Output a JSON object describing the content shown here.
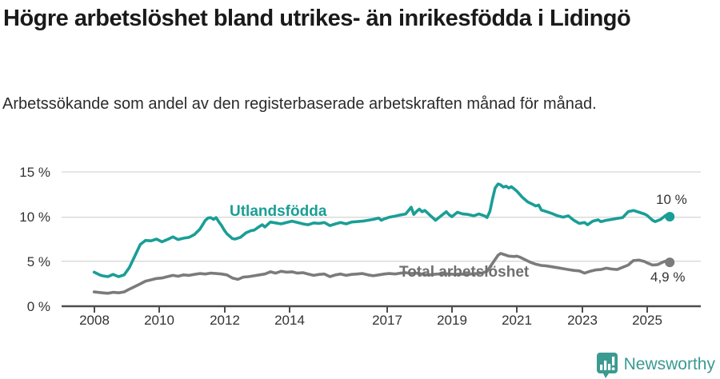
{
  "header": {
    "title": "Högre arbetslöshet bland utrikes- än inrikesfödda i Lidingö",
    "subtitle": "Arbetssökande som andel av den registerbaserade arbetskraften månad för månad."
  },
  "footer": {
    "brand": "Newsworthy",
    "brand_color": "#3B9A92",
    "logo_icon": "newsworthy-pin-bar-chart-icon"
  },
  "chart_data": {
    "type": "line",
    "title": "Högre arbetslöshet bland utrikes- än inrikesfödda i Lidingö",
    "subtitle": "Arbetssökande som andel av den registerbaserade arbetskraften månad för månad.",
    "x_unit": "decimal year (monthly observations)",
    "xlim": [
      2007.9,
      2026.1
    ],
    "ylim": [
      0,
      15
    ],
    "grid": true,
    "axis_color": "#4d4d4d",
    "grid_color": "#d8d8d8",
    "yticks": [
      0,
      5,
      10,
      15
    ],
    "ytick_labels": [
      "0 %",
      "5 %",
      "10 %",
      "15 %"
    ],
    "xticks": [
      2008,
      2010,
      2012,
      2014,
      2017,
      2019,
      2021,
      2023,
      2025
    ],
    "xtick_labels": [
      "2008",
      "2010",
      "2012",
      "2014",
      "2017",
      "2019",
      "2021",
      "2023",
      "2025"
    ],
    "series": [
      {
        "name": "Utlandsfödda",
        "color": "#1A9E96",
        "end_value": 10.0,
        "end_label": "10 %",
        "points": [
          [
            2008.0,
            3.8
          ],
          [
            2008.17,
            3.5
          ],
          [
            2008.25,
            3.4
          ],
          [
            2008.42,
            3.3
          ],
          [
            2008.58,
            3.55
          ],
          [
            2008.75,
            3.3
          ],
          [
            2008.92,
            3.5
          ],
          [
            2009.08,
            4.3
          ],
          [
            2009.25,
            5.6
          ],
          [
            2009.42,
            6.9
          ],
          [
            2009.58,
            7.35
          ],
          [
            2009.75,
            7.3
          ],
          [
            2009.92,
            7.5
          ],
          [
            2010.08,
            7.2
          ],
          [
            2010.25,
            7.45
          ],
          [
            2010.42,
            7.75
          ],
          [
            2010.58,
            7.45
          ],
          [
            2010.75,
            7.6
          ],
          [
            2010.92,
            7.7
          ],
          [
            2011.08,
            8.0
          ],
          [
            2011.25,
            8.6
          ],
          [
            2011.42,
            9.6
          ],
          [
            2011.5,
            9.85
          ],
          [
            2011.58,
            9.9
          ],
          [
            2011.67,
            9.7
          ],
          [
            2011.75,
            9.9
          ],
          [
            2011.83,
            9.45
          ],
          [
            2011.92,
            9.0
          ],
          [
            2012.0,
            8.5
          ],
          [
            2012.08,
            8.1
          ],
          [
            2012.25,
            7.55
          ],
          [
            2012.33,
            7.5
          ],
          [
            2012.5,
            7.7
          ],
          [
            2012.67,
            8.2
          ],
          [
            2012.83,
            8.45
          ],
          [
            2012.92,
            8.5
          ],
          [
            2013.08,
            8.9
          ],
          [
            2013.17,
            9.1
          ],
          [
            2013.25,
            8.85
          ],
          [
            2013.42,
            9.4
          ],
          [
            2013.58,
            9.3
          ],
          [
            2013.75,
            9.2
          ],
          [
            2013.92,
            9.35
          ],
          [
            2014.08,
            9.5
          ],
          [
            2014.25,
            9.35
          ],
          [
            2014.42,
            9.2
          ],
          [
            2014.58,
            9.1
          ],
          [
            2014.75,
            9.3
          ],
          [
            2014.92,
            9.25
          ],
          [
            2015.08,
            9.35
          ],
          [
            2015.25,
            9.0
          ],
          [
            2015.42,
            9.2
          ],
          [
            2015.58,
            9.35
          ],
          [
            2015.75,
            9.2
          ],
          [
            2015.92,
            9.4
          ],
          [
            2016.08,
            9.45
          ],
          [
            2016.25,
            9.5
          ],
          [
            2016.42,
            9.6
          ],
          [
            2016.58,
            9.7
          ],
          [
            2016.75,
            9.85
          ],
          [
            2016.83,
            9.6
          ],
          [
            2016.92,
            9.75
          ],
          [
            2017.08,
            9.95
          ],
          [
            2017.25,
            10.05
          ],
          [
            2017.42,
            10.2
          ],
          [
            2017.58,
            10.3
          ],
          [
            2017.75,
            11.05
          ],
          [
            2017.83,
            10.25
          ],
          [
            2017.92,
            10.6
          ],
          [
            2018.0,
            10.85
          ],
          [
            2018.08,
            10.55
          ],
          [
            2018.17,
            10.7
          ],
          [
            2018.33,
            10.15
          ],
          [
            2018.5,
            9.6
          ],
          [
            2018.67,
            10.1
          ],
          [
            2018.83,
            10.55
          ],
          [
            2018.92,
            10.2
          ],
          [
            2019.0,
            10.0
          ],
          [
            2019.17,
            10.5
          ],
          [
            2019.33,
            10.3
          ],
          [
            2019.5,
            10.25
          ],
          [
            2019.67,
            10.1
          ],
          [
            2019.83,
            10.3
          ],
          [
            2019.92,
            10.2
          ],
          [
            2020.0,
            10.1
          ],
          [
            2020.08,
            9.9
          ],
          [
            2020.17,
            10.6
          ],
          [
            2020.25,
            12.0
          ],
          [
            2020.33,
            13.2
          ],
          [
            2020.42,
            13.65
          ],
          [
            2020.5,
            13.55
          ],
          [
            2020.58,
            13.3
          ],
          [
            2020.67,
            13.4
          ],
          [
            2020.75,
            13.2
          ],
          [
            2020.83,
            13.35
          ],
          [
            2020.92,
            13.1
          ],
          [
            2021.0,
            12.85
          ],
          [
            2021.17,
            12.15
          ],
          [
            2021.33,
            11.65
          ],
          [
            2021.5,
            11.35
          ],
          [
            2021.58,
            11.2
          ],
          [
            2021.67,
            11.3
          ],
          [
            2021.75,
            10.75
          ],
          [
            2021.92,
            10.55
          ],
          [
            2022.08,
            10.35
          ],
          [
            2022.25,
            10.1
          ],
          [
            2022.42,
            9.95
          ],
          [
            2022.58,
            10.1
          ],
          [
            2022.75,
            9.6
          ],
          [
            2022.92,
            9.25
          ],
          [
            2023.08,
            9.35
          ],
          [
            2023.17,
            9.1
          ],
          [
            2023.33,
            9.5
          ],
          [
            2023.5,
            9.65
          ],
          [
            2023.58,
            9.45
          ],
          [
            2023.75,
            9.6
          ],
          [
            2023.92,
            9.7
          ],
          [
            2024.08,
            9.8
          ],
          [
            2024.25,
            9.9
          ],
          [
            2024.42,
            10.55
          ],
          [
            2024.58,
            10.7
          ],
          [
            2024.75,
            10.5
          ],
          [
            2024.92,
            10.3
          ],
          [
            2025.0,
            10.15
          ],
          [
            2025.17,
            9.6
          ],
          [
            2025.25,
            9.45
          ],
          [
            2025.42,
            9.7
          ],
          [
            2025.58,
            10.15
          ],
          [
            2025.7,
            10.0
          ]
        ]
      },
      {
        "name": "Total arbetslöshet",
        "color": "#7B7B7B",
        "end_value": 4.9,
        "end_label": "4,9 %",
        "points": [
          [
            2008.0,
            1.6
          ],
          [
            2008.25,
            1.5
          ],
          [
            2008.42,
            1.45
          ],
          [
            2008.58,
            1.55
          ],
          [
            2008.75,
            1.5
          ],
          [
            2008.92,
            1.6
          ],
          [
            2009.08,
            1.9
          ],
          [
            2009.25,
            2.2
          ],
          [
            2009.42,
            2.5
          ],
          [
            2009.58,
            2.8
          ],
          [
            2009.75,
            2.95
          ],
          [
            2009.92,
            3.1
          ],
          [
            2010.08,
            3.15
          ],
          [
            2010.25,
            3.3
          ],
          [
            2010.42,
            3.45
          ],
          [
            2010.58,
            3.35
          ],
          [
            2010.75,
            3.5
          ],
          [
            2010.92,
            3.45
          ],
          [
            2011.08,
            3.55
          ],
          [
            2011.25,
            3.65
          ],
          [
            2011.42,
            3.6
          ],
          [
            2011.58,
            3.7
          ],
          [
            2011.75,
            3.65
          ],
          [
            2011.92,
            3.6
          ],
          [
            2012.08,
            3.5
          ],
          [
            2012.25,
            3.15
          ],
          [
            2012.42,
            3.0
          ],
          [
            2012.58,
            3.25
          ],
          [
            2012.75,
            3.3
          ],
          [
            2012.92,
            3.4
          ],
          [
            2013.08,
            3.5
          ],
          [
            2013.25,
            3.6
          ],
          [
            2013.42,
            3.85
          ],
          [
            2013.58,
            3.7
          ],
          [
            2013.75,
            3.9
          ],
          [
            2013.92,
            3.8
          ],
          [
            2014.08,
            3.85
          ],
          [
            2014.25,
            3.7
          ],
          [
            2014.42,
            3.75
          ],
          [
            2014.58,
            3.6
          ],
          [
            2014.75,
            3.45
          ],
          [
            2014.92,
            3.55
          ],
          [
            2015.08,
            3.6
          ],
          [
            2015.25,
            3.3
          ],
          [
            2015.42,
            3.5
          ],
          [
            2015.58,
            3.6
          ],
          [
            2015.75,
            3.45
          ],
          [
            2015.92,
            3.55
          ],
          [
            2016.08,
            3.6
          ],
          [
            2016.25,
            3.65
          ],
          [
            2016.42,
            3.5
          ],
          [
            2016.58,
            3.4
          ],
          [
            2016.75,
            3.5
          ],
          [
            2016.92,
            3.6
          ],
          [
            2017.08,
            3.65
          ],
          [
            2017.25,
            3.6
          ],
          [
            2017.42,
            3.7
          ],
          [
            2017.58,
            3.75
          ],
          [
            2017.75,
            3.65
          ],
          [
            2017.92,
            3.7
          ],
          [
            2018.08,
            3.6
          ],
          [
            2018.25,
            3.5
          ],
          [
            2018.42,
            3.55
          ],
          [
            2018.58,
            3.6
          ],
          [
            2018.75,
            3.65
          ],
          [
            2018.92,
            3.6
          ],
          [
            2019.08,
            3.55
          ],
          [
            2019.25,
            3.6
          ],
          [
            2019.42,
            3.55
          ],
          [
            2019.58,
            3.6
          ],
          [
            2019.75,
            3.65
          ],
          [
            2019.92,
            3.7
          ],
          [
            2020.08,
            3.9
          ],
          [
            2020.25,
            4.8
          ],
          [
            2020.42,
            5.7
          ],
          [
            2020.5,
            5.9
          ],
          [
            2020.58,
            5.8
          ],
          [
            2020.75,
            5.6
          ],
          [
            2020.92,
            5.55
          ],
          [
            2021.0,
            5.6
          ],
          [
            2021.08,
            5.5
          ],
          [
            2021.25,
            5.2
          ],
          [
            2021.42,
            4.9
          ],
          [
            2021.58,
            4.7
          ],
          [
            2021.75,
            4.55
          ],
          [
            2021.92,
            4.5
          ],
          [
            2022.08,
            4.4
          ],
          [
            2022.25,
            4.3
          ],
          [
            2022.42,
            4.2
          ],
          [
            2022.58,
            4.1
          ],
          [
            2022.75,
            4.0
          ],
          [
            2022.92,
            3.95
          ],
          [
            2023.08,
            3.7
          ],
          [
            2023.25,
            3.9
          ],
          [
            2023.42,
            4.05
          ],
          [
            2023.58,
            4.1
          ],
          [
            2023.75,
            4.25
          ],
          [
            2023.92,
            4.15
          ],
          [
            2024.08,
            4.1
          ],
          [
            2024.25,
            4.35
          ],
          [
            2024.42,
            4.6
          ],
          [
            2024.58,
            5.1
          ],
          [
            2024.75,
            5.15
          ],
          [
            2024.92,
            5.0
          ],
          [
            2025.0,
            4.85
          ],
          [
            2025.17,
            4.6
          ],
          [
            2025.33,
            4.65
          ],
          [
            2025.5,
            4.95
          ],
          [
            2025.58,
            5.05
          ],
          [
            2025.7,
            4.9
          ]
        ]
      }
    ],
    "legend_position": "inline-labels-on-lines"
  }
}
